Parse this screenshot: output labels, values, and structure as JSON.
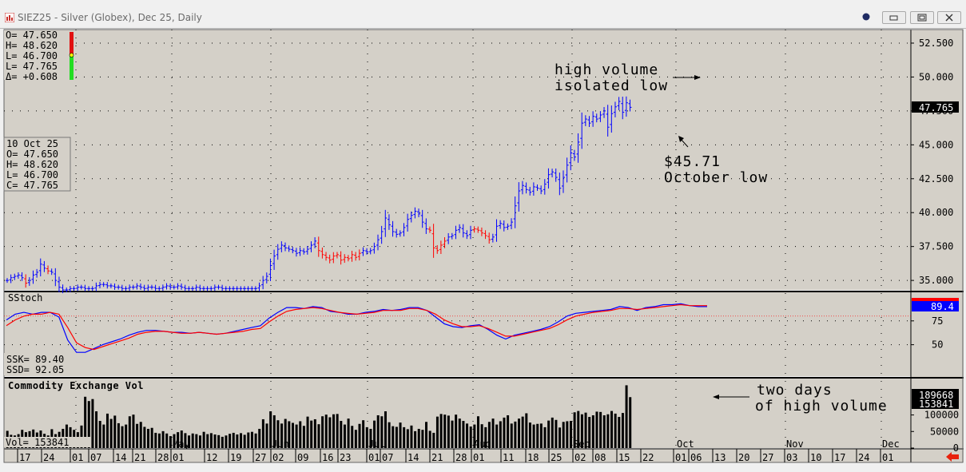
{
  "window": {
    "title": "SIEZ25 - Silver (Globex), Dec 25, Daily",
    "buttons": [
      "minimize",
      "maximize",
      "close"
    ]
  },
  "ohlc_box": {
    "open": "O= 47.650",
    "high": "H= 48.620",
    "low": "L= 46.700",
    "last": "L= 47.765",
    "change": "Δ= +0.608"
  },
  "date_box": {
    "date": "10 Oct 25",
    "open": "O=  47.650",
    "high": "H=  48.620",
    "low": "L=  46.700",
    "close": "C=  47.765"
  },
  "stoch_panel": {
    "title": "SStoch",
    "ssk": "SSK=   89.40",
    "ssd": "SSD=   92.05",
    "current_value": "89.4"
  },
  "volume_panel": {
    "title": "Commodity Exchange Vol",
    "current": "Vol=   153841",
    "badge_high": "189668",
    "badge_current": "153841"
  },
  "price_panel": {
    "last_price": "47.765"
  },
  "annotations": {
    "high_volume_line1": "high volume",
    "high_volume_line2": "isolated low",
    "october_low_line1": "$45.71",
    "october_low_line2": "October low",
    "two_days_line1": "two days",
    "two_days_line2": "of high volume"
  },
  "colors": {
    "plot_background": "#d4d0c8",
    "up_bar": "#0000ff",
    "down_bar": "#ff0000",
    "ssk_line": "#0000ff",
    "ssd_line": "#ff0000",
    "volume_bar": "#000000",
    "last_price_badge": "#000000",
    "stoch_badge": "#0000ff",
    "nav_arrow": "#e8210c"
  },
  "chart_data": [
    {
      "type": "ohlc",
      "name": "price",
      "ylim": [
        34.3,
        53.5
      ],
      "yticks": [
        "52.500",
        "50.000",
        "47.500",
        "45.000",
        "42.500",
        "40.000",
        "37.500",
        "35.000"
      ],
      "ytick_values": [
        52.5,
        50,
        47.5,
        45,
        42.5,
        40,
        37.5,
        35
      ],
      "x_labels": [
        "17",
        "24",
        "01",
        "07",
        "14",
        "21",
        "28",
        "01",
        "12",
        "19",
        "27",
        "02",
        "09",
        "16",
        "23",
        "01",
        "07",
        "14",
        "21",
        "28",
        "01",
        "11",
        "18",
        "25",
        "02",
        "08",
        "15",
        "22",
        "01",
        "06",
        "13",
        "20",
        "27",
        "03",
        "10",
        "17",
        "24",
        "01"
      ],
      "month_labels": [
        "May",
        "Jun",
        "Jul",
        "Aug",
        "Sep",
        "Oct",
        "Nov",
        "Dec"
      ],
      "closes": [
        35.0,
        35.2,
        35.3,
        35.4,
        35.2,
        34.8,
        35.0,
        35.4,
        35.6,
        36.2,
        35.9,
        35.7,
        35.6,
        35.0,
        34.5,
        34.3,
        34.3,
        34.4,
        34.4,
        34.5,
        34.5,
        34.4,
        34.4,
        34.4,
        34.6,
        34.7,
        34.7,
        34.6,
        34.6,
        34.5,
        34.5,
        34.4,
        34.4,
        34.5,
        34.5,
        34.6,
        34.5,
        34.4,
        34.5,
        34.5,
        34.4,
        34.4,
        34.5,
        34.6,
        34.5,
        34.5,
        34.6,
        34.5,
        34.4,
        34.4,
        34.4,
        34.5,
        34.4,
        34.4,
        34.4,
        34.4,
        34.5,
        34.5,
        34.4,
        34.4,
        34.4,
        34.4,
        34.4,
        34.4,
        34.4,
        34.4,
        34.4,
        34.4,
        34.6,
        35.0,
        35.3,
        36.1,
        36.8,
        37.3,
        37.6,
        37.4,
        37.3,
        37.2,
        37.0,
        37.2,
        37.1,
        37.3,
        37.6,
        37.9,
        37.2,
        36.9,
        36.7,
        36.5,
        36.8,
        36.9,
        36.5,
        36.7,
        36.6,
        36.9,
        36.7,
        37.0,
        37.2,
        37.1,
        37.2,
        37.5,
        38.0,
        38.6,
        39.6,
        39.1,
        38.6,
        38.4,
        38.5,
        38.9,
        39.5,
        39.8,
        40.1,
        39.9,
        39.3,
        38.8,
        38.7,
        37.4,
        37.2,
        37.6,
        37.9,
        38.2,
        38.3,
        38.7,
        38.9,
        38.5,
        38.3,
        38.7,
        38.8,
        38.7,
        38.5,
        38.3,
        38.0,
        38.2,
        39.0,
        39.2,
        38.9,
        39.0,
        39.3,
        40.5,
        41.6,
        42.0,
        41.7,
        41.5,
        41.9,
        41.8,
        41.6,
        42.1,
        42.8,
        43.0,
        42.6,
        41.8,
        42.6,
        43.5,
        44.4,
        44.1,
        45.2,
        46.6,
        46.9,
        46.6,
        47.1,
        46.9,
        47.2,
        47.5,
        46.3,
        47.3,
        47.8,
        48.2,
        47.4,
        48.1,
        47.765
      ],
      "down_bar_ranges": [
        [
          5,
          5
        ],
        [
          11,
          11
        ],
        [
          84,
          95
        ],
        [
          114,
          118
        ],
        [
          126,
          130
        ]
      ],
      "last": 47.765
    },
    {
      "type": "line",
      "name": "SStoch",
      "ylim": [
        17,
        105
      ],
      "yticks": [
        "75",
        "50"
      ],
      "ytick_values": [
        75,
        50
      ],
      "reference_line": 80,
      "series": [
        {
          "name": "SSK",
          "values": [
            76,
            82,
            84,
            82,
            84,
            84,
            79,
            55,
            42,
            42,
            46,
            50,
            53,
            56,
            60,
            63,
            65,
            65,
            64,
            63,
            63,
            62,
            63,
            62,
            61,
            62,
            64,
            66,
            68,
            70,
            78,
            84,
            89,
            89,
            88,
            90,
            89,
            85,
            84,
            82,
            82,
            84,
            85,
            87,
            86,
            87,
            89,
            89,
            86,
            79,
            72,
            69,
            68,
            70,
            71,
            66,
            60,
            56,
            60,
            62,
            64,
            66,
            69,
            74,
            80,
            83,
            84,
            85,
            86,
            87,
            90,
            89,
            86,
            89,
            90,
            92,
            92,
            93,
            91,
            90,
            90
          ]
        },
        {
          "name": "SSD",
          "values": [
            70,
            76,
            80,
            82,
            82,
            84,
            82,
            68,
            52,
            47,
            45,
            48,
            51,
            54,
            57,
            61,
            63,
            64,
            64,
            63,
            62,
            62,
            63,
            62,
            61,
            62,
            63,
            64,
            66,
            67,
            74,
            80,
            85,
            87,
            88,
            89,
            88,
            86,
            84,
            83,
            82,
            83,
            84,
            86,
            86,
            86,
            88,
            88,
            86,
            82,
            76,
            72,
            69,
            69,
            70,
            67,
            63,
            59,
            59,
            61,
            63,
            65,
            67,
            71,
            76,
            80,
            82,
            84,
            85,
            86,
            88,
            88,
            87,
            88,
            89,
            90,
            91,
            92,
            91,
            91,
            91
          ]
        },
        {
          "name": "SSK current",
          "value": 89.4
        },
        {
          "name": "SSD current",
          "value": 92.05
        }
      ]
    },
    {
      "type": "bar",
      "name": "Commodity Exchange Vol",
      "ylim": [
        0,
        210000
      ],
      "yticks": [
        "100000",
        "50000",
        "0"
      ],
      "ytick_values": [
        100000,
        50000,
        0
      ],
      "last_badges": [
        189668,
        153841
      ],
      "values": [
        52000,
        40000,
        38000,
        42000,
        55000,
        48000,
        51000,
        56000,
        47000,
        53000,
        43000,
        38000,
        57000,
        42000,
        49000,
        58000,
        71000,
        63000,
        55000,
        48000,
        68000,
        155000,
        142000,
        148000,
        111000,
        82000,
        71000,
        104000,
        88000,
        98000,
        75000,
        66000,
        71000,
        96000,
        101000,
        73000,
        79000,
        64000,
        58000,
        61000,
        46000,
        44000,
        51000,
        44000,
        36000,
        42000,
        48000,
        53000,
        45000,
        38000,
        44000,
        42000,
        38000,
        49000,
        42000,
        45000,
        41000,
        39000,
        34000,
        38000,
        43000,
        46000,
        41000,
        45000,
        40000,
        47000,
        49000,
        44000,
        58000,
        87000,
        74000,
        111000,
        99000,
        84000,
        74000,
        88000,
        81000,
        76000,
        71000,
        81000,
        67000,
        95000,
        83000,
        87000,
        72000,
        96000,
        101000,
        93000,
        102000,
        103000,
        82000,
        71000,
        89000,
        67000,
        55000,
        73000,
        84000,
        63000,
        58000,
        83000,
        99000,
        96000,
        111000,
        78000,
        66000,
        64000,
        77000,
        63000,
        57000,
        68000,
        51000,
        58000,
        55000,
        79000,
        52000,
        46000,
        95000,
        103000,
        101000,
        98000,
        83000,
        101000,
        89000,
        82000,
        74000,
        65000,
        71000,
        96000,
        72000,
        63000,
        79000,
        89000,
        71000,
        81000,
        92000,
        99000,
        74000,
        80000,
        89000,
        95000,
        105000,
        77000,
        71000,
        73000,
        74000,
        63000,
        83000,
        92000,
        85000,
        62000,
        79000,
        81000,
        82000,
        108000,
        112000,
        102000,
        107000,
        94000,
        99000,
        110000,
        109000,
        99000,
        102000,
        112000,
        104000,
        94000,
        106000,
        189668,
        153841
      ]
    }
  ]
}
